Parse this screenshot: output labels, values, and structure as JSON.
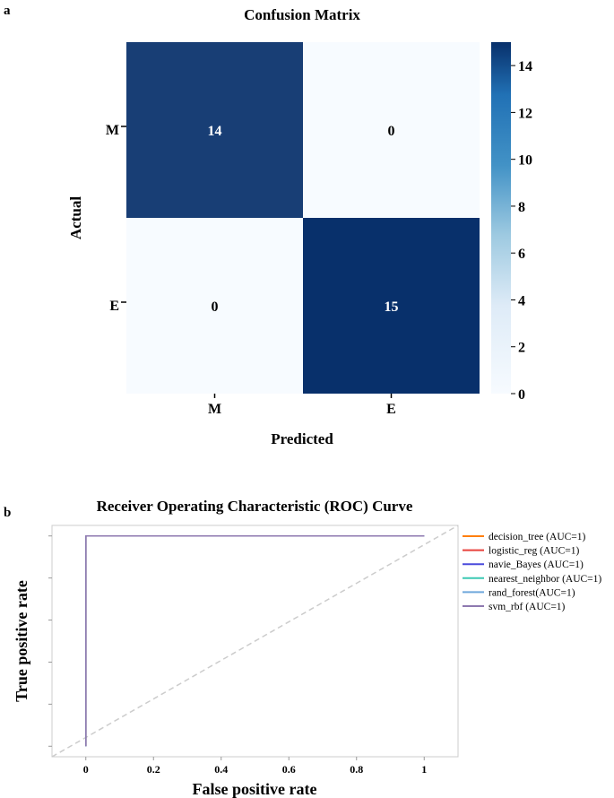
{
  "chart_data": [
    {
      "panel_label": "a",
      "type": "heatmap",
      "title": "Confusion Matrix",
      "xlabel": "Predicted",
      "ylabel": "Actual",
      "x_categories": [
        "M",
        "E"
      ],
      "y_categories": [
        "M",
        "E"
      ],
      "values": [
        [
          14,
          0
        ],
        [
          0,
          15
        ]
      ],
      "colorbar": {
        "min": 0,
        "max": 15,
        "ticks": [
          0,
          2,
          4,
          6,
          8,
          10,
          12,
          14
        ],
        "color_low": "#f7fbff",
        "color_high": "#08306b"
      }
    },
    {
      "panel_label": "b",
      "type": "line",
      "title": "Receiver Operating Characteristic (ROC) Curve",
      "xlabel": "False positive rate",
      "ylabel": "True positive rate",
      "xlim": [
        -0.1,
        1.1
      ],
      "ylim": [
        -0.05,
        1.05
      ],
      "x_ticks": [
        0,
        0.2,
        0.4,
        0.6,
        0.8,
        1
      ],
      "x_tick_labels": [
        "0",
        "0.2",
        "0.4",
        "0.6",
        "0.8",
        "1"
      ],
      "y_ticks": [
        0,
        0.2,
        0.4,
        0.6,
        0.8,
        1
      ],
      "diagonal": {
        "x": [
          -0.1,
          1.1
        ],
        "y": [
          -0.05,
          1.05
        ],
        "color": "#cccccc",
        "dashed": true
      },
      "legend_placement": "right, outside plot",
      "series": [
        {
          "name": "decision_tree (AUC=1)",
          "color": "#ff7f0e",
          "x": [
            0,
            0,
            1
          ],
          "y": [
            0,
            1,
            1
          ]
        },
        {
          "name": "logistic_reg (AUC=1)",
          "color": "#e8413c",
          "x": [
            0,
            0,
            1
          ],
          "y": [
            0,
            1,
            1
          ]
        },
        {
          "name": "navie_Bayes (AUC=1)",
          "color": "#4b4bdc",
          "x": [
            0,
            0,
            1
          ],
          "y": [
            0,
            1,
            1
          ]
        },
        {
          "name": "nearest_neighbor (AUC=1)",
          "color": "#3cc9b4",
          "x": [
            0,
            0,
            1
          ],
          "y": [
            0,
            1,
            1
          ]
        },
        {
          "name": "rand_forest(AUC=1)",
          "color": "#6fa8dc",
          "x": [
            0,
            0,
            1
          ],
          "y": [
            0,
            1,
            1
          ]
        },
        {
          "name": "svm_rbf (AUC=1)",
          "color": "#8e79b0",
          "x": [
            0,
            0,
            1
          ],
          "y": [
            0,
            1,
            1
          ]
        }
      ]
    }
  ]
}
